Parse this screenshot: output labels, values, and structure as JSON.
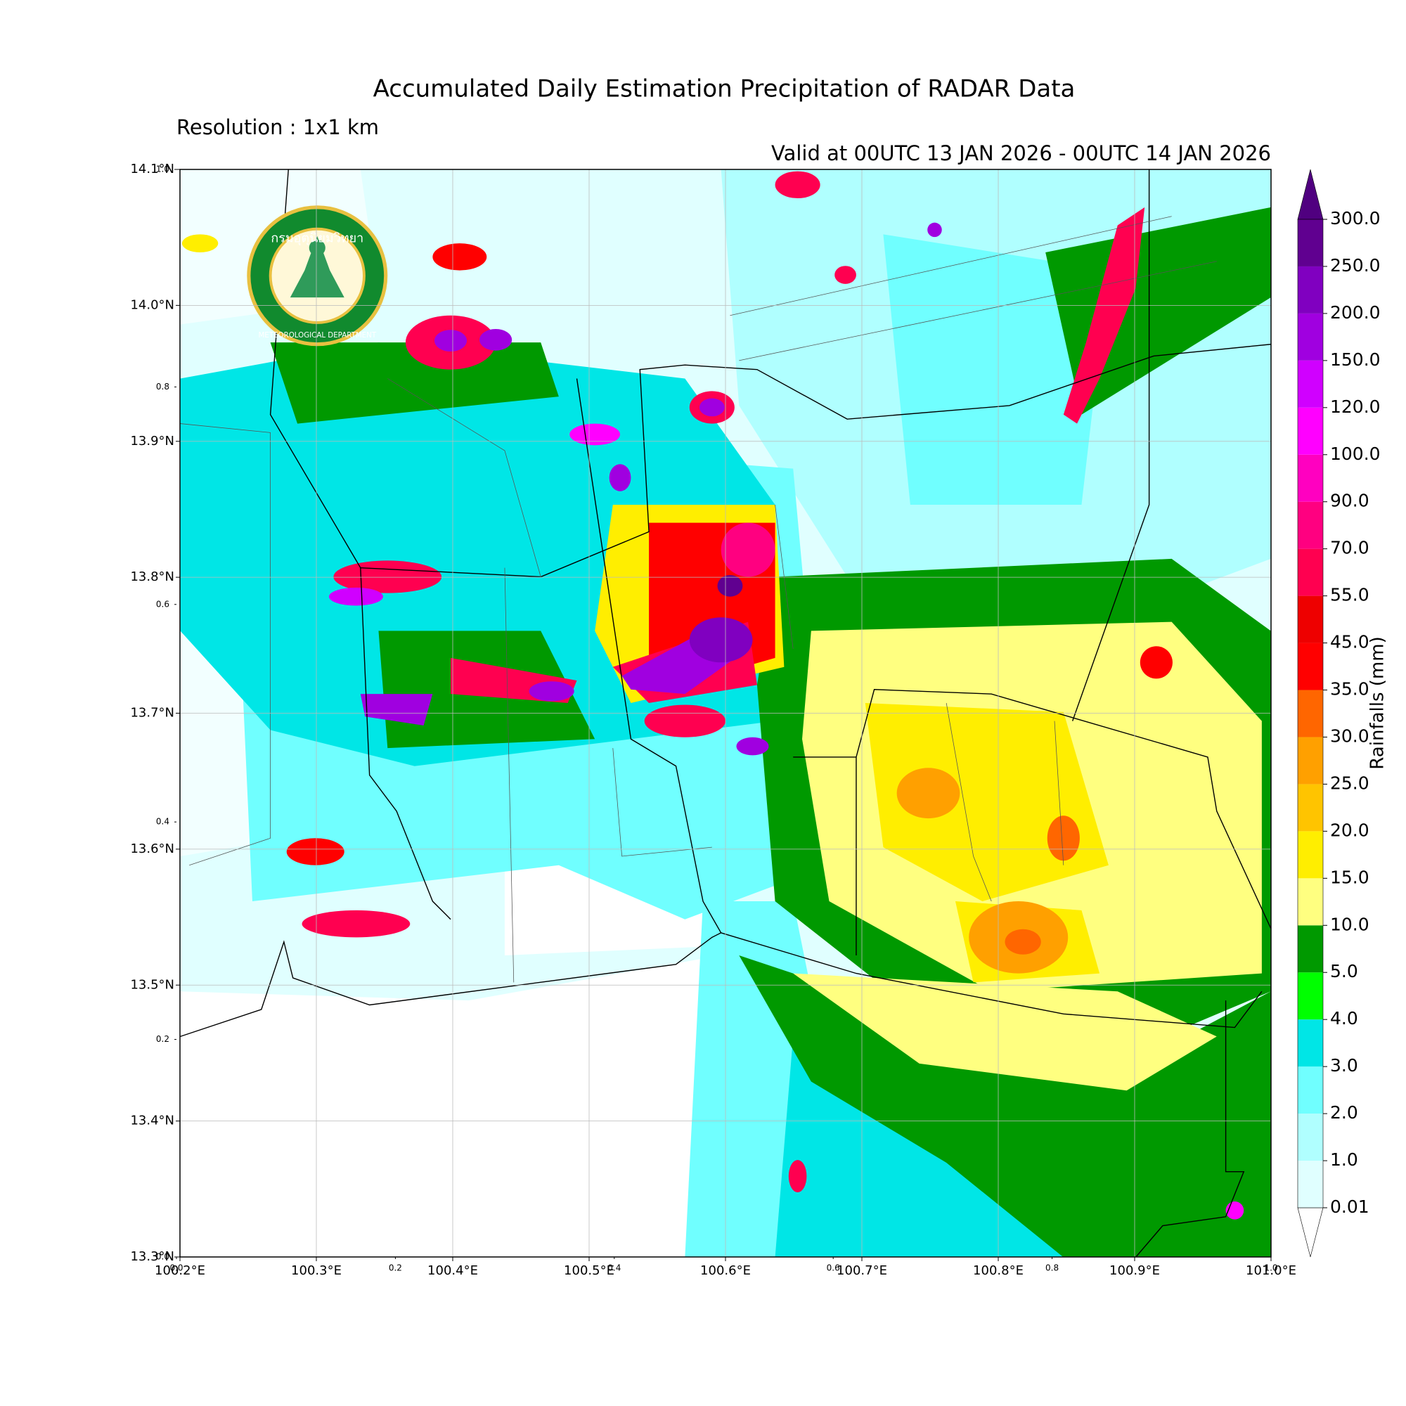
{
  "title": "Accumulated Daily Estimation Precipitation of RADAR Data",
  "subtitle": "Resolution : 1x1 km",
  "valid_time": "Valid at 00UTC 13 JAN 2026 - 00UTC 14 JAN 2026",
  "logo": {
    "thai_name": "กรมอุตุนิยมวิทยา",
    "english_name": "METEOROLOGICAL DEPARTMENT"
  },
  "map": {
    "xlim": [
      100.2,
      101.0
    ],
    "ylim": [
      13.3,
      14.1
    ],
    "grid": true,
    "xticks": [
      {
        "value": 100.2,
        "label": "100.2°E"
      },
      {
        "value": 100.3,
        "label": "100.3°E"
      },
      {
        "value": 100.4,
        "label": "100.4°E"
      },
      {
        "value": 100.5,
        "label": "100.5°E"
      },
      {
        "value": 100.6,
        "label": "100.6°E"
      },
      {
        "value": 100.7,
        "label": "100.7°E"
      },
      {
        "value": 100.8,
        "label": "100.8°E"
      },
      {
        "value": 100.9,
        "label": "100.9°E"
      },
      {
        "value": 101.0,
        "label": "101.0°E"
      }
    ],
    "yticks": [
      {
        "value": 13.3,
        "label": "13.3°N"
      },
      {
        "value": 13.4,
        "label": "13.4°N"
      },
      {
        "value": 13.5,
        "label": "13.5°N"
      },
      {
        "value": 13.6,
        "label": "13.6°N"
      },
      {
        "value": 13.7,
        "label": "13.7°N"
      },
      {
        "value": 13.8,
        "label": "13.8°N"
      },
      {
        "value": 13.9,
        "label": "13.9°N"
      },
      {
        "value": 14.0,
        "label": "14.0°N"
      },
      {
        "value": 14.1,
        "label": "14.1°N"
      }
    ]
  },
  "overlay_axis": {
    "xlim": [
      0,
      1
    ],
    "ylim": [
      0,
      1
    ],
    "xticks": [
      {
        "value": 0,
        "label": "0.0"
      },
      0.2,
      0.4,
      0.6,
      0.8,
      {
        "value": 1,
        "label": "1.0"
      }
    ],
    "yticks": [
      {
        "value": 0,
        "label": "0.0"
      },
      0.2,
      0.4,
      0.6,
      0.8,
      {
        "value": 1,
        "label": "1.0"
      }
    ]
  },
  "colorbar": {
    "label": "Rainfalls (mm)",
    "levels": [
      {
        "value": 0.01,
        "label": "0.01"
      },
      {
        "value": 1,
        "label": "1.0"
      },
      {
        "value": 2,
        "label": "2.0"
      },
      {
        "value": 3,
        "label": "3.0"
      },
      {
        "value": 4,
        "label": "4.0"
      },
      {
        "value": 5,
        "label": "5.0"
      },
      {
        "value": 10,
        "label": "10.0"
      },
      {
        "value": 15,
        "label": "15.0"
      },
      {
        "value": 20,
        "label": "20.0"
      },
      {
        "value": 25,
        "label": "25.0"
      },
      {
        "value": 30,
        "label": "30.0"
      },
      {
        "value": 35,
        "label": "35.0"
      },
      {
        "value": 45,
        "label": "45.0"
      },
      {
        "value": 55,
        "label": "55.0"
      },
      {
        "value": 70,
        "label": "70.0"
      },
      {
        "value": 90,
        "label": "90.0"
      },
      {
        "value": 100,
        "label": "100.0"
      },
      {
        "value": 120,
        "label": "120.0"
      },
      {
        "value": 150,
        "label": "150.0"
      },
      {
        "value": 200,
        "label": "200.0"
      },
      {
        "value": 250,
        "label": "250.0"
      },
      {
        "value": 300,
        "label": "300.0"
      }
    ],
    "colors": [
      "#e0ffff",
      "#b0ffff",
      "#70ffff",
      "#00e6e6",
      "#00ff00",
      "#009900",
      "#ffff80",
      "#ffee00",
      "#ffc400",
      "#ffa000",
      "#ff6600",
      "#ff0000",
      "#ee0000",
      "#ff0050",
      "#ff0080",
      "#ff00c0",
      "#ff00ff",
      "#d000ff",
      "#a000e0",
      "#8000c0",
      "#600090"
    ],
    "over_color": "#500080",
    "under_color": "#ffffff"
  }
}
